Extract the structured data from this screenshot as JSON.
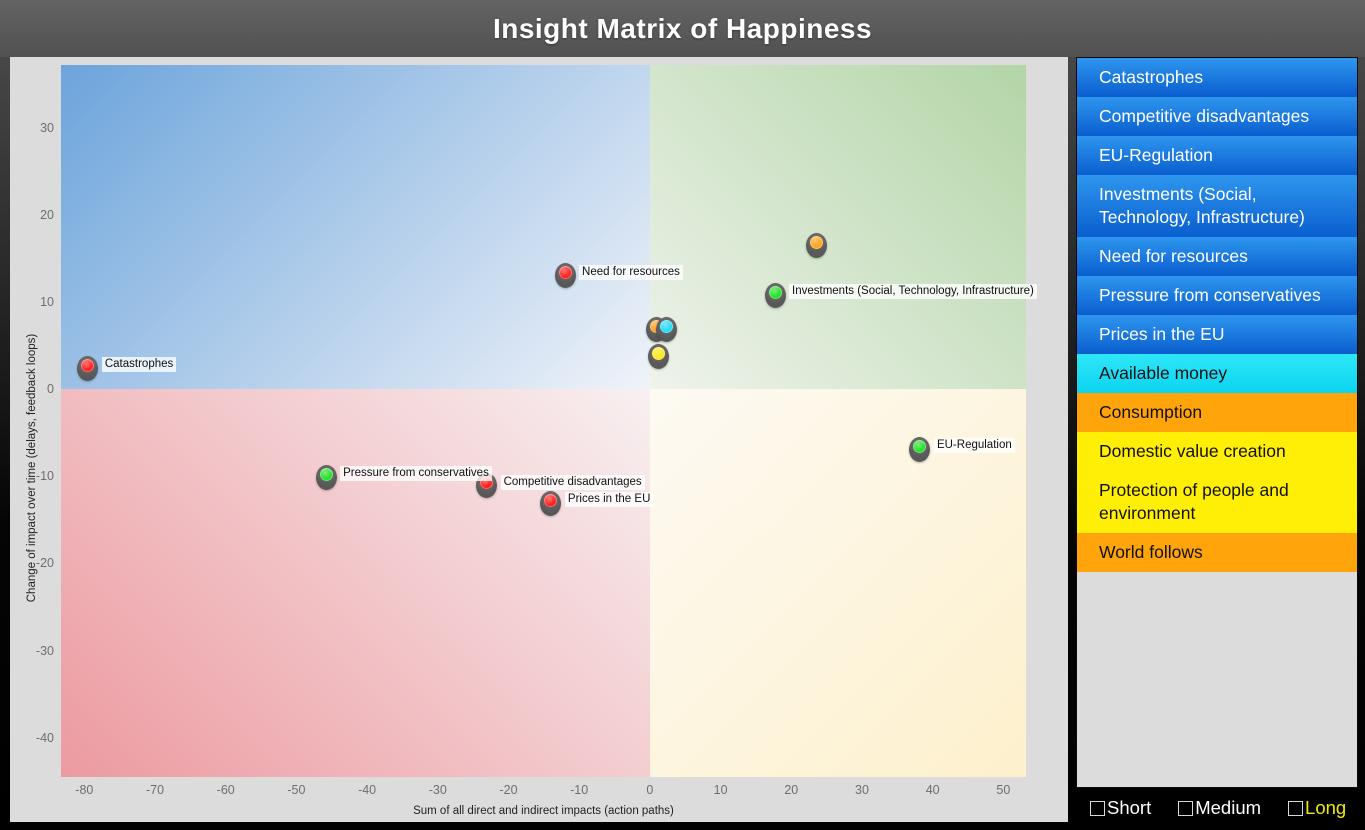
{
  "title": "Insight Matrix of Happiness",
  "chart_data": {
    "type": "scatter",
    "title": "Insight Matrix of Happiness",
    "xlabel": "Sum of all direct and indirect impacts (action paths)",
    "ylabel": "Change of impact over time (delays, feedback loops)",
    "xlim": [
      -83.3,
      53.2
    ],
    "ylim": [
      -44.5,
      37.2
    ],
    "x_ticks": [
      -80,
      -70,
      -60,
      -50,
      -40,
      -30,
      -20,
      -10,
      0,
      10,
      20,
      30,
      40,
      50
    ],
    "y_ticks": [
      30,
      20,
      10,
      0,
      -10,
      -20,
      -30,
      -40
    ],
    "grid": false,
    "quadrants": {
      "top_left": {
        "angle": "135deg",
        "from": "#6ca4db",
        "to": "#f0f3f9"
      },
      "top_right": {
        "angle": "225deg",
        "from": "#b3d5a7",
        "to": "#eff3ec"
      },
      "bottom_left": {
        "angle": "45deg",
        "from": "#ec9aa0",
        "to": "#f8f0f1"
      },
      "bottom_right": {
        "angle": "315deg",
        "from": "#fdf0cc",
        "to": "#fdfaf3"
      }
    },
    "points": [
      {
        "label": "Catastrophes",
        "x": -79.5,
        "y": 2.4,
        "color": "#ff1f1f"
      },
      {
        "label": "Need for resources",
        "x": -12.0,
        "y": 13.0,
        "color": "#ff1f1f"
      },
      {
        "label": "",
        "x": 23.5,
        "y": 16.5,
        "color": "#ffa318"
      },
      {
        "label": "Investments (Social, Technology, Infrastructure)",
        "x": 17.7,
        "y": 10.8,
        "color": "#24e02a"
      },
      {
        "label": "",
        "x": 0.9,
        "y": 6.9,
        "color": "#ffa318"
      },
      {
        "label": "",
        "x": 2.3,
        "y": 6.8,
        "color": "#24d9f8"
      },
      {
        "label": "",
        "x": 1.2,
        "y": 3.8,
        "color": "#ffe818"
      },
      {
        "label": "EU-Regulation",
        "x": 38.2,
        "y": -6.9,
        "color": "#24e02a"
      },
      {
        "label": "Pressure from conservatives",
        "x": -45.8,
        "y": -10.1,
        "color": "#24e02a"
      },
      {
        "label": "Competitive disadvantages",
        "x": -23.1,
        "y": -11.1,
        "color": "#ff1f1f"
      },
      {
        "label": "Prices in the EU",
        "x": -14.0,
        "y": -13.1,
        "color": "#ff1f1f"
      }
    ]
  },
  "sidebar": {
    "items": [
      {
        "label": "Catastrophes",
        "bg_top": "#2e96ee",
        "bg_bottom": "#0a5ecf",
        "text_color": "#ffffff"
      },
      {
        "label": "Competitive disadvantages",
        "bg_top": "#2e96ee",
        "bg_bottom": "#0a5ecf",
        "text_color": "#ffffff"
      },
      {
        "label": "EU-Regulation",
        "bg_top": "#2e96ee",
        "bg_bottom": "#0a5ecf",
        "text_color": "#ffffff"
      },
      {
        "label": "Investments (Social, Technology, Infrastructure)",
        "bg_top": "#2e96ee",
        "bg_bottom": "#0a5ecf",
        "text_color": "#ffffff"
      },
      {
        "label": "Need for resources",
        "bg_top": "#2e96ee",
        "bg_bottom": "#0a5ecf",
        "text_color": "#ffffff"
      },
      {
        "label": "Pressure from conservatives",
        "bg_top": "#2e96ee",
        "bg_bottom": "#0a5ecf",
        "text_color": "#ffffff"
      },
      {
        "label": "Prices in the EU",
        "bg_top": "#2e96ee",
        "bg_bottom": "#0a5ecf",
        "text_color": "#ffffff"
      },
      {
        "label": "Available money",
        "bg_top": "#2fe6f8",
        "bg_bottom": "#0bd4ef",
        "text_color": "#111111"
      },
      {
        "label": "Consumption",
        "bg_top": "#ffa40a",
        "bg_bottom": "#ffa40a",
        "text_color": "#111111"
      },
      {
        "label": "Domestic value creation",
        "bg_top": "#ffee05",
        "bg_bottom": "#ffee05",
        "text_color": "#111111"
      },
      {
        "label": "Protection of people and environment",
        "bg_top": "#ffee05",
        "bg_bottom": "#ffee05",
        "text_color": "#111111"
      },
      {
        "label": "World follows",
        "bg_top": "#ffa40a",
        "bg_bottom": "#ffa40a",
        "text_color": "#111111"
      }
    ]
  },
  "filters": {
    "items": [
      {
        "label": "Short",
        "checked": false,
        "label_color": "#ffffff"
      },
      {
        "label": "Medium",
        "checked": false,
        "label_color": "#ffffff"
      },
      {
        "label": "Long",
        "checked": false,
        "label_color": "#eeea0c"
      }
    ]
  }
}
